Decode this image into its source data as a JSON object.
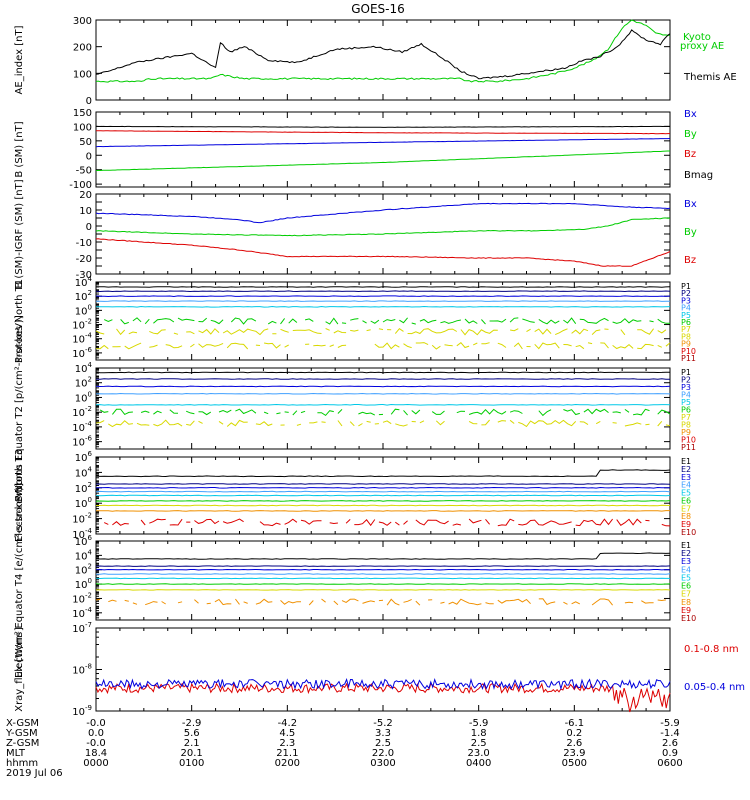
{
  "title": "GOES-16",
  "colors": {
    "black": "#000000",
    "blue": "#0000dd",
    "green": "#00cc00",
    "red": "#dd0000",
    "cyan": "#00c8e8",
    "yellow": "#d8d800",
    "orange": "#f09000",
    "darkred": "#aa0000",
    "navy": "#000080",
    "purple": "#8000a0",
    "lightblue": "#40a0ff"
  },
  "chart_data": [
    {
      "type": "line",
      "ylabel": "AE_index [nT]",
      "ylim": [
        0,
        300
      ],
      "yscale": "linear",
      "yticks": [
        0,
        100,
        200,
        300
      ],
      "series": [
        {
          "name": "Kyoto proxy AE",
          "color": "#00cc00",
          "x": [
            0,
            0.5,
            0.53,
            1.2,
            1.3,
            1.55,
            2.5,
            3.2,
            3.5,
            3.8,
            3.9,
            4.2,
            4.5,
            4.8,
            5.0,
            5.2,
            5.35,
            5.5,
            5.6,
            5.75,
            5.85,
            6.0
          ],
          "y": [
            70,
            70,
            80,
            80,
            95,
            80,
            80,
            80,
            80,
            80,
            70,
            70,
            80,
            100,
            120,
            150,
            190,
            270,
            300,
            280,
            250,
            240
          ]
        },
        {
          "name": "Themis AE",
          "color": "#000000",
          "x": [
            0,
            0.15,
            0.4,
            1.0,
            1.25,
            1.3,
            1.4,
            1.55,
            1.8,
            2.1,
            2.5,
            2.9,
            3.2,
            3.4,
            3.65,
            3.8,
            4.0,
            4.3,
            4.5,
            4.9,
            5.1,
            5.25,
            5.45,
            5.6,
            5.75,
            5.9,
            6.0
          ],
          "y": [
            95,
            110,
            140,
            175,
            120,
            215,
            180,
            200,
            150,
            140,
            190,
            200,
            180,
            210,
            150,
            110,
            80,
            90,
            100,
            120,
            150,
            160,
            200,
            260,
            225,
            210,
            250
          ]
        }
      ],
      "legend": [
        "Kyoto",
        "proxy AE",
        "Themis AE"
      ]
    },
    {
      "type": "line",
      "ylabel": "B (SM) [nT]",
      "ylim": [
        -110,
        150
      ],
      "yscale": "linear",
      "yticks": [
        -100,
        -50,
        0,
        50,
        100,
        150
      ],
      "series": [
        {
          "name": "Bx",
          "color": "#0000dd",
          "x": [
            0,
            3,
            6
          ],
          "y": [
            30,
            45,
            58
          ]
        },
        {
          "name": "By",
          "color": "#00cc00",
          "x": [
            0,
            3,
            5.3,
            6
          ],
          "y": [
            -53,
            -25,
            5,
            15
          ]
        },
        {
          "name": "Bz",
          "color": "#dd0000",
          "x": [
            0,
            3,
            6
          ],
          "y": [
            85,
            78,
            75
          ]
        },
        {
          "name": "Bmag",
          "color": "#000000",
          "x": [
            0,
            3,
            6
          ],
          "y": [
            100,
            97,
            100
          ]
        }
      ],
      "legend": [
        "Bx",
        "By",
        "Bz",
        "Bmag"
      ]
    },
    {
      "type": "line",
      "ylabel": "B (SM)-IGRF (SM) [nT]",
      "ylim": [
        -30,
        20
      ],
      "yscale": "linear",
      "yticks": [
        -30,
        -25,
        -20,
        -15,
        -10,
        -5,
        0,
        5,
        10,
        15,
        20
      ],
      "tick_labels": [
        "-30",
        "",
        "-20",
        "",
        "-10",
        "",
        "0",
        "",
        "10",
        "",
        "20"
      ],
      "series": [
        {
          "name": "Bx",
          "color": "#0000dd",
          "x": [
            0,
            1,
            1.5,
            1.7,
            2.0,
            3.0,
            4.0,
            5.0,
            5.5,
            6.0
          ],
          "y": [
            8,
            6,
            4,
            2,
            5,
            10,
            14,
            14,
            12,
            11
          ]
        },
        {
          "name": "By",
          "color": "#00cc00",
          "x": [
            0,
            1,
            2,
            3,
            4,
            4.6,
            5.1,
            5.35,
            5.6,
            6.0
          ],
          "y": [
            -3,
            -5,
            -6,
            -5,
            -3,
            -3,
            -2,
            0,
            4,
            5
          ]
        },
        {
          "name": "Bz",
          "color": "#dd0000",
          "x": [
            0,
            1,
            1.5,
            2,
            3,
            4,
            4.5,
            5.0,
            5.3,
            5.6,
            6.0
          ],
          "y": [
            -8,
            -12,
            -15,
            -19,
            -19,
            -20,
            -20,
            -22,
            -25,
            -25,
            -16
          ]
        }
      ],
      "legend": [
        "Bx",
        "By",
        "Bz"
      ]
    },
    {
      "type": "line",
      "ylabel": "Protons North T1",
      "yscale": "log",
      "ylim_exp": [
        -7,
        4
      ],
      "tick_exps": [
        -6,
        -4,
        -2,
        0,
        2,
        4
      ],
      "channels": [
        "P1",
        "P2",
        "P3",
        "P4",
        "P5",
        "P6",
        "P7",
        "P8",
        "P9",
        "P10",
        "P11"
      ],
      "series_levels_exp": [
        3.3,
        2.7,
        2.0,
        1.3,
        0.5,
        -1.5,
        -3.0,
        -5.0
      ]
    },
    {
      "type": "line",
      "ylabel": "Protons Equator T2 [p/(cm²-s-sr-keV)]",
      "yscale": "log",
      "ylim_exp": [
        -7,
        4
      ],
      "tick_exps": [
        -6,
        -4,
        -2,
        0,
        2,
        4
      ],
      "channels": [
        "P1",
        "P2",
        "P3",
        "P4",
        "P5",
        "P6",
        "P7",
        "P8",
        "P9",
        "P10",
        "P11"
      ],
      "series_levels_exp": [
        3.4,
        2.5,
        1.5,
        0.5,
        -1.0,
        -2.0,
        -3.5
      ]
    },
    {
      "type": "line",
      "ylabel": "Electrons North T3",
      "yscale": "log",
      "ylim_exp": [
        -4,
        6
      ],
      "tick_exps": [
        -4,
        -2,
        0,
        2,
        4,
        6
      ],
      "channels": [
        "E1",
        "E2",
        "E3",
        "E4",
        "E5",
        "E6",
        "E7",
        "E8",
        "E9",
        "E10"
      ],
      "series_levels_exp": [
        3.5,
        2.5,
        2.0,
        1.5,
        1.0,
        0.3,
        -0.3,
        -1.0,
        -2.5
      ]
    },
    {
      "type": "line",
      "ylabel": "Electrons Equator T4 [e/(cm²-s-sr-keV)]",
      "yscale": "log",
      "ylim_exp": [
        -5,
        6
      ],
      "tick_exps": [
        -4,
        -2,
        0,
        2,
        4,
        6
      ],
      "channels": [
        "E1",
        "E2",
        "E3",
        "E4",
        "E5",
        "E6",
        "E7",
        "E8",
        "E9",
        "E10"
      ],
      "series_levels_exp": [
        3.5,
        2.5,
        2.0,
        1.4,
        0.8,
        0.0,
        -0.8,
        -2.5
      ]
    },
    {
      "type": "line",
      "ylabel": "Xray_flux [W/m²]",
      "yscale": "log",
      "ylim_exp": [
        -9,
        -7
      ],
      "tick_exps": [
        -9,
        -8,
        -7
      ],
      "series": [
        {
          "name": "0.1-0.8 nm",
          "color": "#dd0000",
          "level_exp": -8.45
        },
        {
          "name": "0.05-0.4 nm",
          "color": "#0000dd",
          "level_exp": -8.35
        }
      ],
      "legend": [
        "0.1-0.8 nm",
        "0.05-0.4 nm"
      ]
    }
  ],
  "xaxis": {
    "row_labels": [
      "X-GSM",
      "Y-GSM",
      "Z-GSM",
      "MLT",
      "hhmm",
      "2019 Jul 06"
    ],
    "columns": [
      [
        "-0.0",
        "0.0",
        "-0.0",
        "18.4",
        "0000"
      ],
      [
        "-2.9",
        "5.6",
        "2.1",
        "20.1",
        "0100"
      ],
      [
        "-4.2",
        "4.5",
        "2.3",
        "21.1",
        "0200"
      ],
      [
        "-5.2",
        "3.3",
        "2.5",
        "22.0",
        "0300"
      ],
      [
        "-5.9",
        "1.8",
        "2.5",
        "23.0",
        "0400"
      ],
      [
        "-6.1",
        "0.2",
        "2.6",
        "23.9",
        "0500"
      ],
      [
        "-5.9",
        "-1.4",
        "2.6",
        "0.9",
        "0600"
      ]
    ],
    "xlim_hours": [
      0,
      6
    ]
  }
}
